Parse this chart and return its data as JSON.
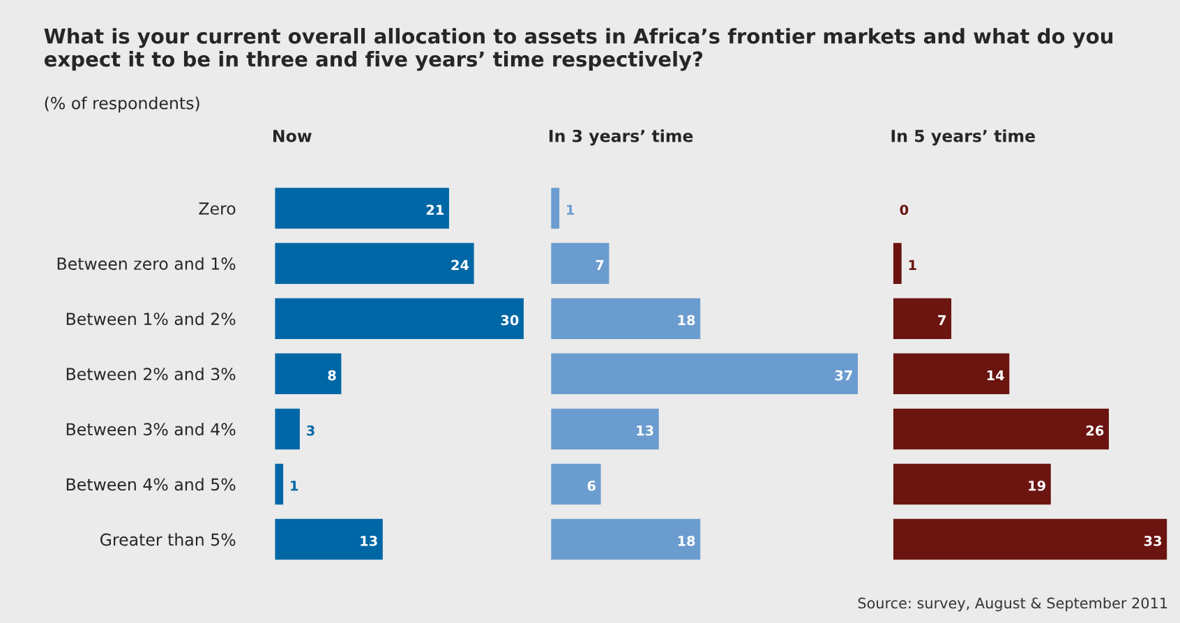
{
  "chart_data": [
    {
      "type": "bar",
      "orientation": "horizontal",
      "title": "Now",
      "tick_labels": "y",
      "data_labels": true,
      "grid": false,
      "legend": false,
      "annotations": [
        "What is your current overall allocation to assets in Africa’s frontier markets and what do you expect it to be in three and five years’ time respectively?",
        "(% of respondents)"
      ],
      "categories": [
        "Zero",
        "Between zero and 1%",
        "Between 1% and 2%",
        "Between 2% and 3%",
        "Between 3% and 4%",
        "Between 4% and 5%",
        "Greater than 5%"
      ],
      "series": [
        {
          "color": "#0067a6",
          "values": [
            21,
            24,
            30,
            8,
            3,
            1,
            13
          ]
        }
      ]
    },
    {
      "type": "bar",
      "orientation": "horizontal",
      "title": "In 3 years’ time",
      "tick_labels": false,
      "data_labels": true,
      "grid": false,
      "legend": false,
      "series": [
        {
          "color": "#6b9ccf",
          "values": [
            1,
            7,
            18,
            37,
            13,
            6,
            18
          ]
        }
      ]
    },
    {
      "type": "bar",
      "orientation": "horizontal",
      "title": "In 5 years’ time",
      "tick_labels": false,
      "data_labels": true,
      "grid": false,
      "legend": false,
      "annotations": [
        "Source: survey, August & September 2011"
      ],
      "series": [
        {
          "color": "#6b1410",
          "values": [
            0,
            1,
            7,
            14,
            26,
            19,
            33
          ]
        }
      ]
    }
  ]
}
